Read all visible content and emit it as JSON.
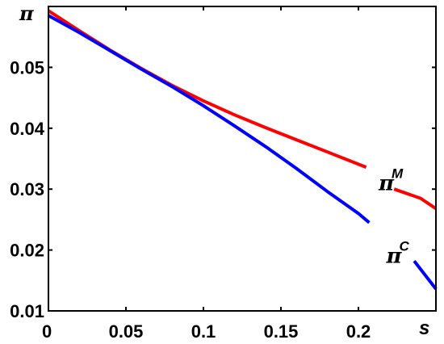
{
  "chart_data": {
    "type": "line",
    "xlabel": "s",
    "ylabel": "π",
    "xlim": [
      0,
      0.25
    ],
    "ylim": [
      0.01,
      0.06
    ],
    "x_ticks": [
      "0",
      "0.05",
      "0.1",
      "0.15",
      "0.2"
    ],
    "x_tick_values": [
      0,
      0.05,
      0.1,
      0.15,
      0.2
    ],
    "y_ticks": [
      "0.01",
      "0.02",
      "0.03",
      "0.04",
      "0.05"
    ],
    "y_tick_values": [
      0.01,
      0.02,
      0.03,
      0.04,
      0.05
    ],
    "grid": false,
    "series": [
      {
        "color": "#ff0000",
        "segments": [
          [
            [
              0,
              0.0593
            ],
            [
              0.02,
              0.056
            ],
            [
              0.04,
              0.0528
            ],
            [
              0.06,
              0.0498
            ],
            [
              0.08,
              0.047
            ],
            [
              0.1,
              0.0445
            ],
            [
              0.12,
              0.0422
            ],
            [
              0.14,
              0.0401
            ],
            [
              0.16,
              0.0381
            ],
            [
              0.18,
              0.0361
            ],
            [
              0.205,
              0.0336
            ]
          ],
          [
            [
              0.223,
              0.03
            ],
            [
              0.24,
              0.0285
            ],
            [
              0.25,
              0.0268
            ]
          ]
        ]
      },
      {
        "color": "#0000ff",
        "segments": [
          [
            [
              0,
              0.0585
            ],
            [
              0.02,
              0.0557
            ],
            [
              0.04,
              0.0527
            ],
            [
              0.06,
              0.0497
            ],
            [
              0.08,
              0.0468
            ],
            [
              0.1,
              0.0437
            ],
            [
              0.12,
              0.0404
            ],
            [
              0.14,
              0.037
            ],
            [
              0.16,
              0.0334
            ],
            [
              0.18,
              0.0296
            ],
            [
              0.2,
              0.026
            ],
            [
              0.207,
              0.0245
            ]
          ],
          [
            [
              0.236,
              0.0182
            ],
            [
              0.25,
              0.0136
            ]
          ]
        ]
      }
    ],
    "annotations": [
      {
        "base": "π",
        "sup": "M",
        "x": 0.213,
        "y": 0.0298
      },
      {
        "base": "π",
        "sup": "C",
        "x": 0.218,
        "y": 0.0179
      }
    ]
  }
}
